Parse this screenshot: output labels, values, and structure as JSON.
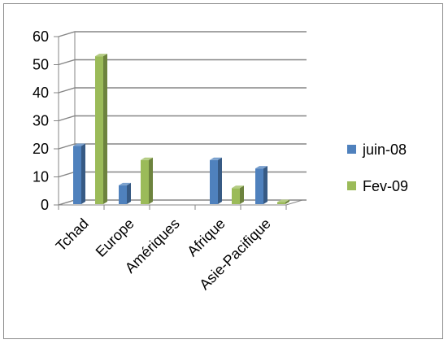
{
  "chart_data": {
    "type": "bar",
    "categories": [
      "Tchad",
      "Europe",
      "Amériques",
      "Afrique",
      "Asie-Pacifique"
    ],
    "series": [
      {
        "name": "juin-08",
        "values": [
          21,
          7,
          0,
          16,
          13
        ],
        "color": "#4f81bd"
      },
      {
        "name": "Fev-09",
        "values": [
          53,
          16,
          0,
          6,
          1
        ],
        "color": "#9bbb59"
      }
    ],
    "ylim": [
      0,
      60
    ],
    "yticks": [
      0,
      10,
      20,
      30,
      40,
      50,
      60
    ],
    "grid": true,
    "legend": "right",
    "style": "3d-clustered-column"
  }
}
